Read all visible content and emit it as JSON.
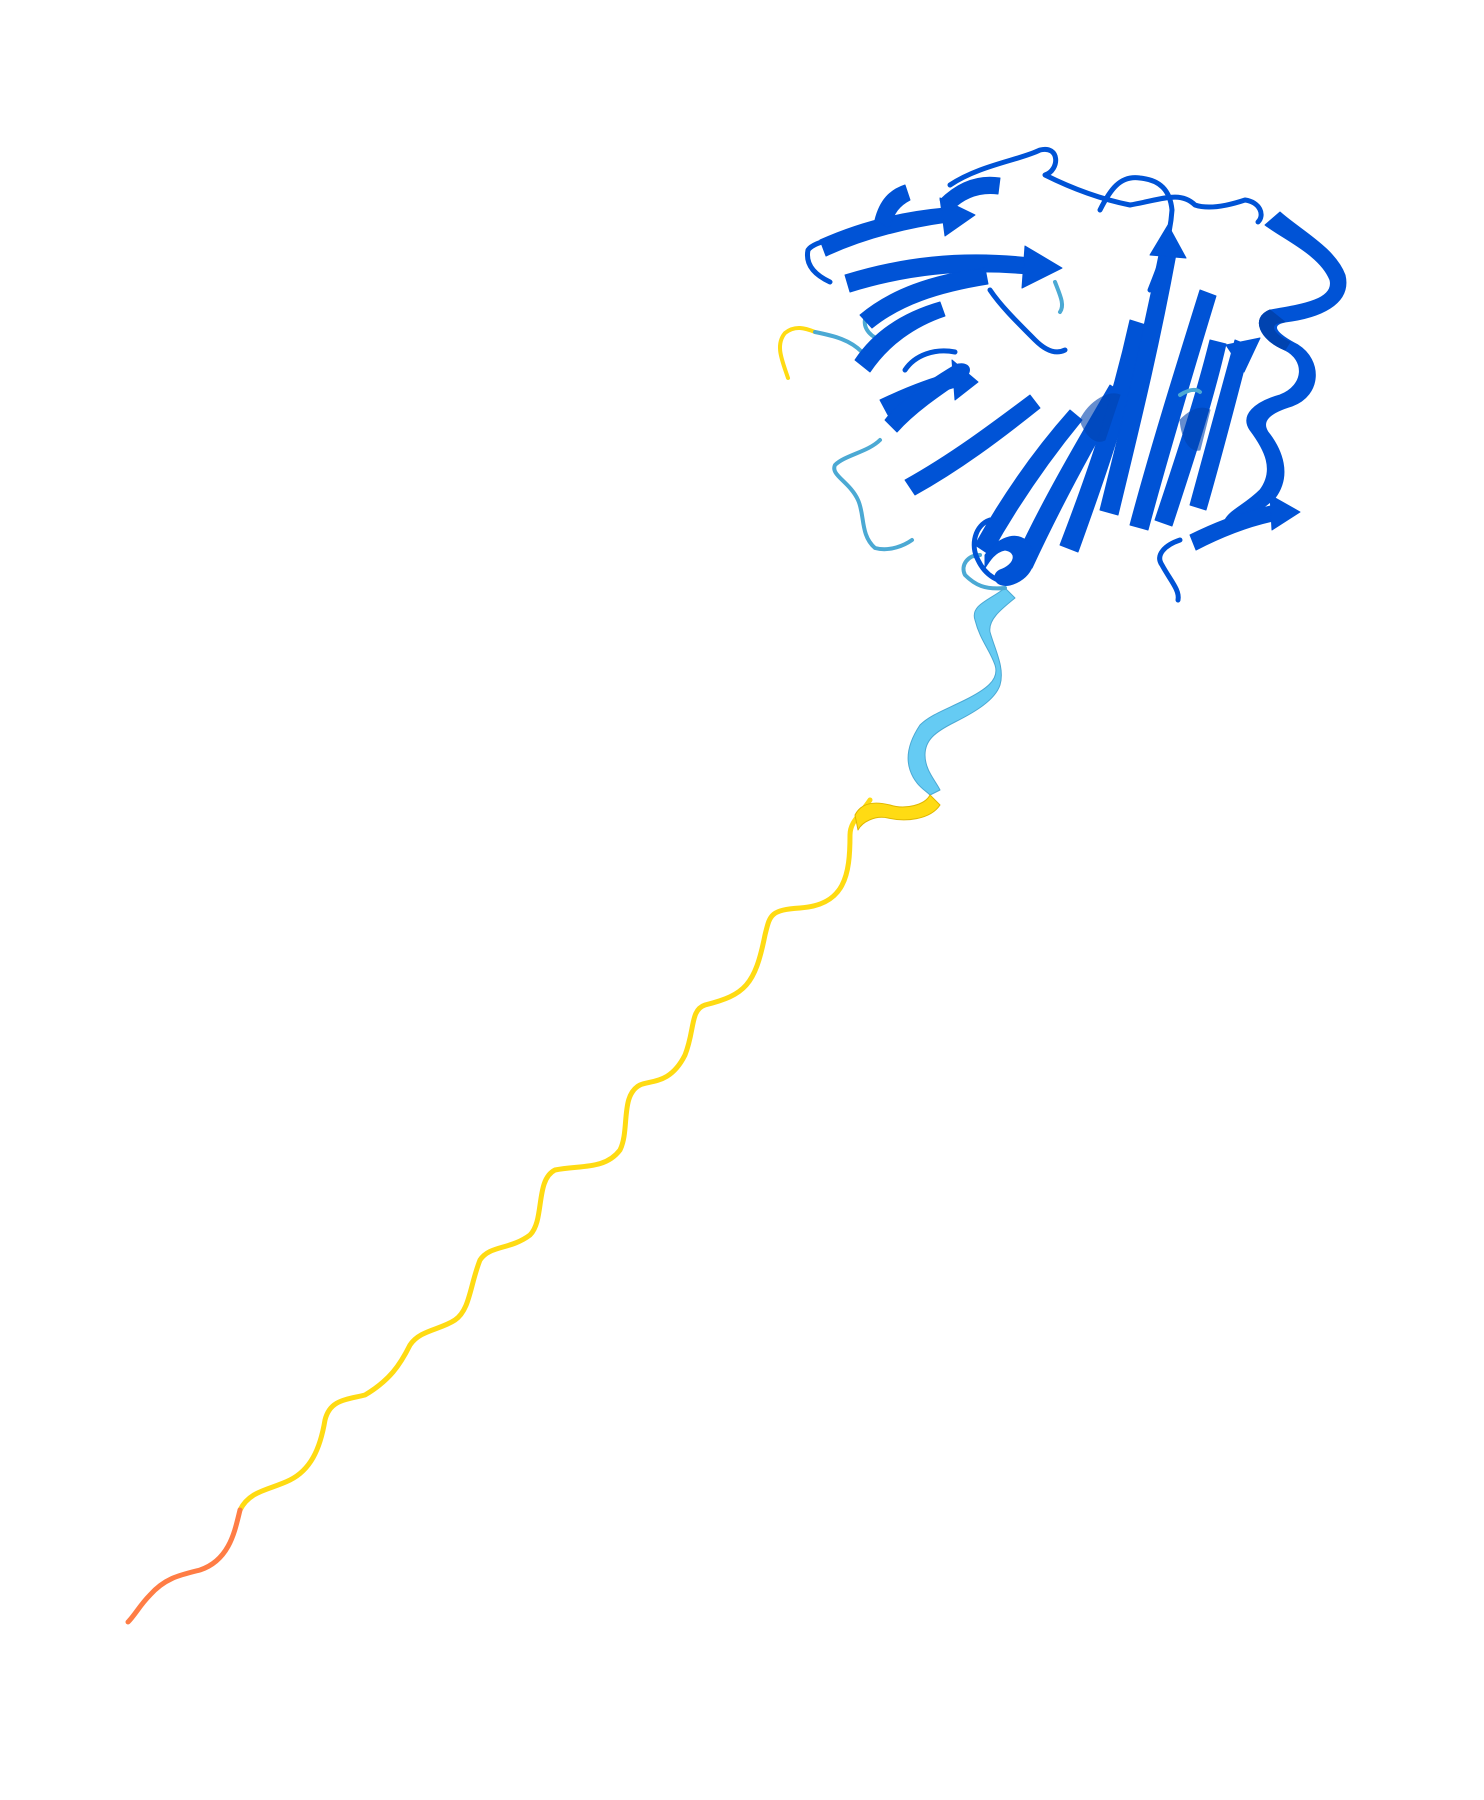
{
  "image": {
    "subject": "protein-structure-cartoon",
    "background_color": "#ffffff"
  },
  "colors": {
    "very_high": "#0053d6",
    "very_high_dark": "#0043b0",
    "confident": "#65cbf3",
    "confident_dark": "#4ba9d4",
    "low": "#ffdb13",
    "low_dark": "#e0b800",
    "very_low": "#ff7d45"
  },
  "regions": [
    {
      "name": "folded-domain",
      "color_key": "very_high"
    },
    {
      "name": "linker-helix",
      "color_key": "confident"
    },
    {
      "name": "n-terminal-fragment",
      "color_key": "low"
    },
    {
      "name": "disordered-tail",
      "color_key": "low"
    },
    {
      "name": "terminal-end",
      "color_key": "very_low"
    }
  ]
}
